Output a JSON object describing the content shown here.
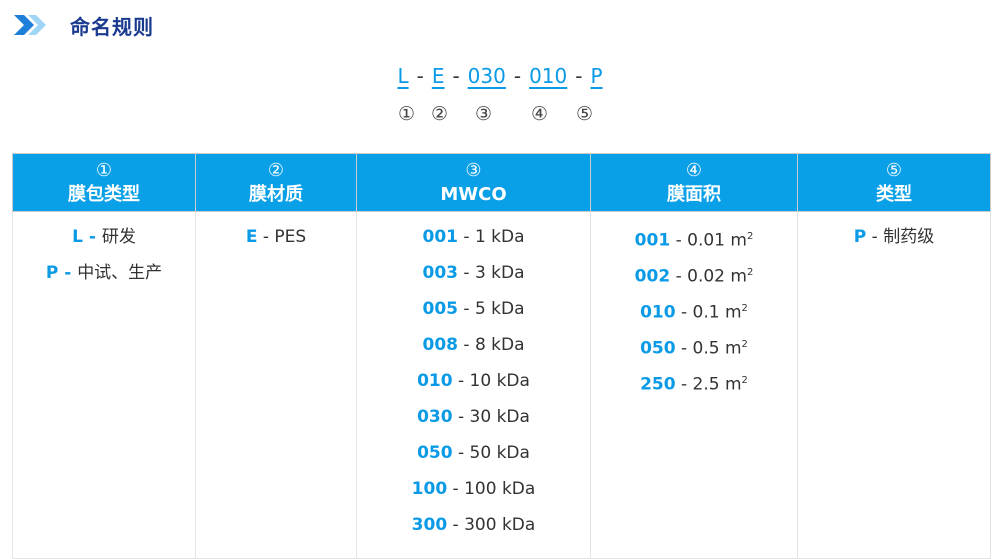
{
  "header": {
    "icon": "double-chevron-right-icon",
    "title": "命名规则"
  },
  "code": {
    "segments": [
      "L",
      "E",
      "030",
      "010",
      "P"
    ],
    "separator": "-",
    "markers": [
      "①",
      "②",
      "③",
      "④",
      "⑤"
    ]
  },
  "colors": {
    "accent": "#0aa0e8",
    "title": "#1a3a8f"
  },
  "table": {
    "columns": [
      {
        "num": "①",
        "label": "膜包类型",
        "items": [
          {
            "key": "L",
            "sep": " - ",
            "value": "研发"
          },
          {
            "key": "P",
            "sep": " - ",
            "value": "中试、生产"
          }
        ]
      },
      {
        "num": "②",
        "label": "膜材质",
        "items": [
          {
            "key": "E",
            "sep": " - ",
            "value": "PES"
          }
        ]
      },
      {
        "num": "③",
        "label": "MWCO",
        "items": [
          {
            "key": "001",
            "sep": " - ",
            "value": "1 kDa"
          },
          {
            "key": "003",
            "sep": " - ",
            "value": "3 kDa"
          },
          {
            "key": "005",
            "sep": " - ",
            "value": "5 kDa"
          },
          {
            "key": "008",
            "sep": " - ",
            "value": "8 kDa"
          },
          {
            "key": "010",
            "sep": " - ",
            "value": "10 kDa"
          },
          {
            "key": "030",
            "sep": " - ",
            "value": "30 kDa"
          },
          {
            "key": "050",
            "sep": " - ",
            "value": "50 kDa"
          },
          {
            "key": "100",
            "sep": " - ",
            "value": "100 kDa"
          },
          {
            "key": "300",
            "sep": " - ",
            "value": "300 kDa"
          }
        ]
      },
      {
        "num": "④",
        "label": "膜面积",
        "items": [
          {
            "key": "001",
            "sep": " - ",
            "value": "0.01 m",
            "sup": "2"
          },
          {
            "key": "002",
            "sep": " - ",
            "value": "0.02 m",
            "sup": "2"
          },
          {
            "key": "010",
            "sep": " - ",
            "value": "0.1 m",
            "sup": "2"
          },
          {
            "key": "050",
            "sep": " - ",
            "value": "0.5 m",
            "sup": "2"
          },
          {
            "key": "250",
            "sep": " - ",
            "value": "2.5 m",
            "sup": "2"
          }
        ]
      },
      {
        "num": "⑤",
        "label": "类型",
        "items": [
          {
            "key": "P",
            "sep": " - ",
            "value": "制药级"
          }
        ]
      }
    ]
  }
}
